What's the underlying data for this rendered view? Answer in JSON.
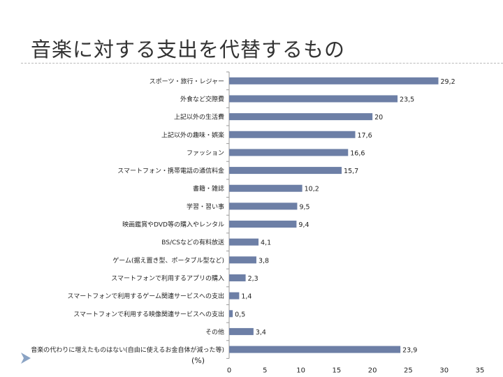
{
  "slide": {
    "title": "音楽に対する支出を代替するもの"
  },
  "colors": {
    "bar": "#6d7fa6",
    "text": "#222222",
    "axis": "#9a9a9a"
  },
  "chart_data": {
    "type": "bar",
    "orientation": "horizontal",
    "title": "",
    "xlabel": "(%)",
    "ylabel": "",
    "xlim": [
      0,
      35
    ],
    "xticks": [
      0,
      5,
      10,
      15,
      20,
      25,
      30,
      35
    ],
    "grid": false,
    "legend": "none",
    "categories": [
      "スポーツ・旅行・レジャー",
      "外食など交際費",
      "上記以外の生活費",
      "上記以外の趣味・娯楽",
      "ファッション",
      "スマートフォン・携帯電話の通信料金",
      "書籍・雑誌",
      "学習・習い事",
      "映画鑑賞やDVD等の購入やレンタル",
      "BS/CSなどの有料放送",
      "ゲーム(据え置き型、ポータブル型など)",
      "スマートフォンで利用するアプリの購入",
      "スマートフォンで利用するゲーム関連サービスへの支出",
      "スマートフォンで利用する映像関連サービスへの支出",
      "その他",
      "音楽の代わりに増えたものはない(自由に使えるお金自体が減った等)"
    ],
    "values": [
      29.2,
      23.5,
      20,
      17.6,
      16.6,
      15.7,
      10.2,
      9.5,
      9.4,
      4.1,
      3.8,
      2.3,
      1.4,
      0.5,
      3.4,
      23.9
    ],
    "data_labels": [
      "29,2",
      "23,5",
      "20",
      "17,6",
      "16,6",
      "15,7",
      "10,2",
      "9,5",
      "9,4",
      "4,1",
      "3,8",
      "2,3",
      "1,4",
      "0,5",
      "3,4",
      "23,9"
    ]
  }
}
